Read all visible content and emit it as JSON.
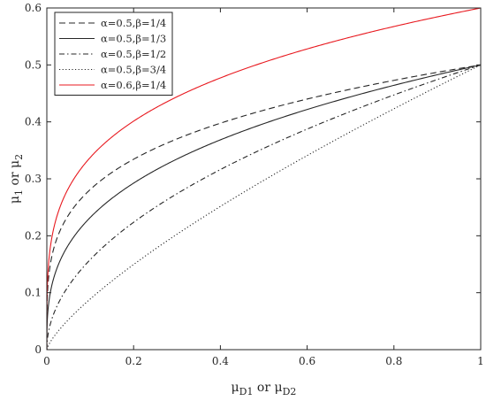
{
  "chart_data": {
    "type": "line",
    "xlabel": {
      "main": "μ",
      "sub1": "D1",
      "mid": " or μ",
      "sub2": "D2"
    },
    "ylabel": {
      "main": "μ",
      "sub1": "1",
      "mid": " or μ",
      "sub2": "2"
    },
    "xlim": [
      0,
      1
    ],
    "ylim": [
      0,
      0.6
    ],
    "xticks": [
      0,
      0.2,
      0.4,
      0.6,
      0.8,
      1
    ],
    "yticks": [
      0,
      0.1,
      0.2,
      0.3,
      0.4,
      0.5,
      0.6
    ],
    "xtick_labels": [
      "0",
      "0.2",
      "0.4",
      "0.6",
      "0.8",
      "1"
    ],
    "ytick_labels": [
      "0",
      "0.1",
      "0.2",
      "0.3",
      "0.4",
      "0.5",
      "0.6"
    ],
    "grid": false,
    "legend_position": "top-left",
    "series": [
      {
        "name": "α=0.5,β=1/4",
        "alpha": 0.5,
        "beta": 0.25,
        "color": "#262626",
        "dash": "7,4",
        "x": [
          0,
          0.01,
          0.05,
          0.1,
          0.2,
          0.4,
          0.6,
          0.8,
          1
        ],
        "values": [
          0,
          0.158,
          0.236,
          0.281,
          0.334,
          0.398,
          0.44,
          0.473,
          0.5
        ]
      },
      {
        "name": "α=0.5,β=1/3",
        "alpha": 0.5,
        "beta": 0.3333,
        "color": "#262626",
        "dash": "",
        "x": [
          0,
          0.01,
          0.05,
          0.1,
          0.2,
          0.4,
          0.6,
          0.8,
          1
        ],
        "values": [
          0,
          0.108,
          0.184,
          0.232,
          0.292,
          0.368,
          0.422,
          0.464,
          0.5
        ]
      },
      {
        "name": "α=0.5,β=1/2",
        "alpha": 0.5,
        "beta": 0.5,
        "color": "#262626",
        "dash": "6,3,1.5,3",
        "x": [
          0,
          0.01,
          0.05,
          0.1,
          0.2,
          0.4,
          0.6,
          0.8,
          1
        ],
        "values": [
          0,
          0.05,
          0.112,
          0.158,
          0.224,
          0.316,
          0.387,
          0.447,
          0.5
        ]
      },
      {
        "name": "α=0.5,β=3/4",
        "alpha": 0.5,
        "beta": 0.75,
        "color": "#262626",
        "dash": "1.2,2.4",
        "x": [
          0,
          0.01,
          0.05,
          0.1,
          0.2,
          0.4,
          0.6,
          0.8,
          1
        ],
        "values": [
          0,
          0.016,
          0.053,
          0.089,
          0.15,
          0.252,
          0.341,
          0.423,
          0.5
        ]
      },
      {
        "name": "α=0.6,β=1/4",
        "alpha": 0.6,
        "beta": 0.25,
        "color": "#e8191f",
        "dash": "",
        "x": [
          0,
          0.01,
          0.05,
          0.1,
          0.2,
          0.4,
          0.6,
          0.8,
          1
        ],
        "values": [
          0,
          0.19,
          0.284,
          0.337,
          0.401,
          0.477,
          0.528,
          0.567,
          0.6
        ]
      }
    ]
  }
}
